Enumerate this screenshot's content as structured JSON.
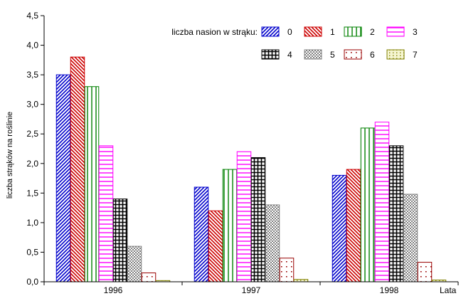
{
  "chart_data": {
    "type": "bar",
    "xlabel": "Lata",
    "ylabel": "liczba strąków na roślinie",
    "categories": [
      "1996",
      "1997",
      "1998"
    ],
    "ylim": [
      0,
      4.5
    ],
    "yticks": [
      "0,0",
      "0,5",
      "1,0",
      "1,5",
      "2,0",
      "2,5",
      "3,0",
      "3,5",
      "4,0",
      "4,5"
    ],
    "grid": false,
    "legend": {
      "title": "liczba nasion w strąku:",
      "placement": "top-right"
    },
    "series": [
      {
        "name": "0",
        "values": [
          3.5,
          1.6,
          1.8
        ],
        "color": "#0000cc",
        "pattern": "diag-right"
      },
      {
        "name": "1",
        "values": [
          3.8,
          1.2,
          1.9
        ],
        "color": "#cc0000",
        "pattern": "diag-left"
      },
      {
        "name": "2",
        "values": [
          3.3,
          1.9,
          2.6
        ],
        "color": "#008000",
        "pattern": "vlines"
      },
      {
        "name": "3",
        "values": [
          2.3,
          2.2,
          2.7
        ],
        "color": "#ff00ff",
        "pattern": "hlines"
      },
      {
        "name": "4",
        "values": [
          1.4,
          2.1,
          2.3
        ],
        "color": "#000000",
        "pattern": "grid"
      },
      {
        "name": "5",
        "values": [
          0.6,
          1.3,
          1.48
        ],
        "color": "#808080",
        "pattern": "checker"
      },
      {
        "name": "6",
        "values": [
          0.15,
          0.4,
          0.33
        ],
        "color": "#990000",
        "pattern": "dots"
      },
      {
        "name": "7",
        "values": [
          0.02,
          0.04,
          0.03
        ],
        "color": "#808000",
        "pattern": "sparse-dots"
      }
    ]
  }
}
